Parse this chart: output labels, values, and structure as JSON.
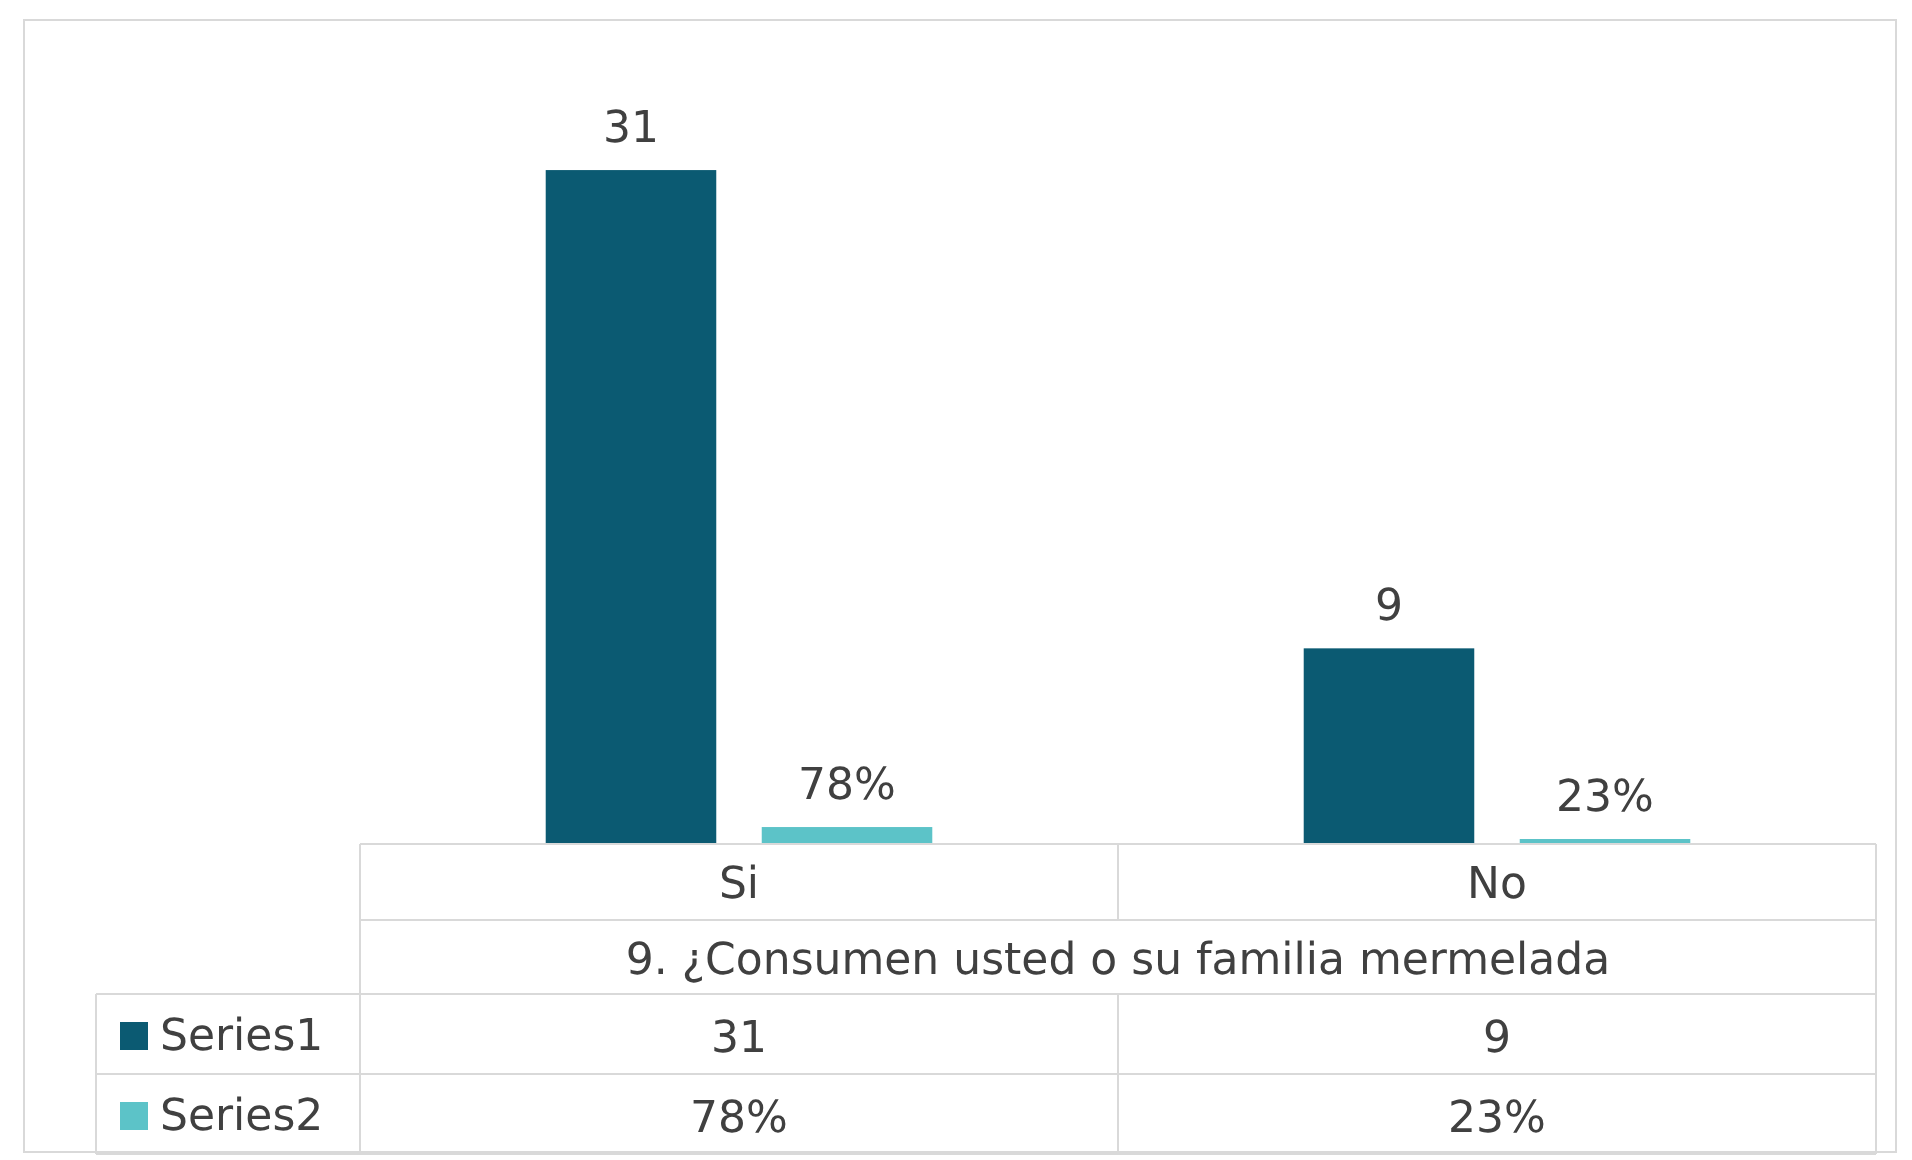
{
  "chart_data": {
    "type": "bar",
    "categories": [
      "Si",
      "No"
    ],
    "xlabel": "9.  ¿Consumen usted o su familia mermelada",
    "series": [
      {
        "name": "Series1",
        "color": "#0b5a72",
        "values": [
          31,
          9
        ],
        "value_labels": [
          "31",
          "9"
        ]
      },
      {
        "name": "Series2",
        "color": "#5cc3c8",
        "values": [
          0.78,
          0.23
        ],
        "value_labels": [
          "78%",
          "23%"
        ]
      }
    ],
    "legend": "bottom",
    "grid": false
  }
}
